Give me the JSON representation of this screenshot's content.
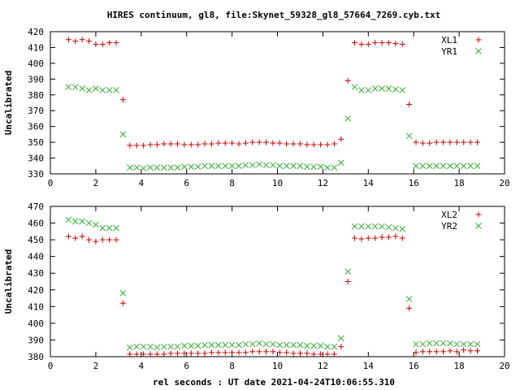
{
  "title": "HIRES continuum, gl8, file:Skynet_59328_gl8_57664_7269.cyb.txt",
  "xlabel": "rel seconds : UT date 2021-04-24T10:06:55.310",
  "colors": {
    "series_a": "#cc0000",
    "series_b": "#33aa33",
    "axis": "#000000"
  },
  "chart_data": [
    {
      "type": "scatter",
      "ylabel": "Uncalibrated",
      "xlim": [
        0,
        20
      ],
      "ylim": [
        330,
        420
      ],
      "xticks": [
        0,
        2,
        4,
        6,
        8,
        10,
        12,
        14,
        16,
        18,
        20
      ],
      "yticks": [
        330,
        340,
        350,
        360,
        370,
        380,
        390,
        400,
        410,
        420
      ],
      "legend_position": "top-right",
      "grid": false,
      "x": [
        0.8,
        1.1,
        1.4,
        1.7,
        2.0,
        2.3,
        2.6,
        2.9,
        3.2,
        3.5,
        3.8,
        4.1,
        4.4,
        4.7,
        5.0,
        5.3,
        5.6,
        5.9,
        6.2,
        6.5,
        6.8,
        7.1,
        7.4,
        7.7,
        8.0,
        8.3,
        8.6,
        8.9,
        9.2,
        9.5,
        9.8,
        10.1,
        10.4,
        10.7,
        11.0,
        11.3,
        11.6,
        11.9,
        12.2,
        12.5,
        12.8,
        13.1,
        13.4,
        13.7,
        14.0,
        14.3,
        14.6,
        14.9,
        15.2,
        15.5,
        15.8,
        16.1,
        16.4,
        16.7,
        17.0,
        17.3,
        17.6,
        17.9,
        18.2,
        18.5,
        18.8
      ],
      "series": [
        {
          "name": "XL1",
          "marker": "plus",
          "values": [
            415,
            414,
            415,
            414,
            412,
            412,
            413,
            413,
            377,
            348,
            348,
            348,
            348.5,
            348.5,
            349,
            349,
            349,
            348.5,
            348.5,
            348.5,
            349,
            349,
            349.5,
            349.5,
            349.5,
            349,
            349.5,
            350,
            350,
            350,
            349.5,
            349.5,
            349,
            349,
            349,
            348.5,
            348.5,
            348.5,
            348.5,
            349,
            352,
            389,
            413,
            412,
            412,
            413,
            413,
            413,
            412.5,
            412,
            374,
            350,
            349.5,
            349.5,
            350,
            350,
            350,
            350,
            350,
            350,
            350
          ]
        },
        {
          "name": "YR1",
          "marker": "cross",
          "values": [
            385,
            385,
            384,
            383,
            384,
            383,
            383,
            383,
            355,
            334,
            334,
            333.5,
            334,
            334,
            334,
            334,
            334,
            334.5,
            334.5,
            334.5,
            335,
            335,
            335,
            335,
            335,
            335,
            335.5,
            335.5,
            336,
            335.5,
            335.5,
            335,
            335,
            335,
            335,
            334.5,
            334.5,
            334.5,
            334,
            334,
            337,
            365,
            385,
            383,
            383,
            384,
            384,
            384,
            383.5,
            383,
            354,
            335,
            335,
            335,
            335,
            335,
            335,
            335,
            335,
            335,
            335
          ]
        }
      ]
    },
    {
      "type": "scatter",
      "ylabel": "Uncalibrated",
      "xlim": [
        0,
        20
      ],
      "ylim": [
        380,
        470
      ],
      "xticks": [
        0,
        2,
        4,
        6,
        8,
        10,
        12,
        14,
        16,
        18,
        20
      ],
      "yticks": [
        380,
        390,
        400,
        410,
        420,
        430,
        440,
        450,
        460,
        470
      ],
      "legend_position": "top-right",
      "grid": false,
      "x": [
        0.8,
        1.1,
        1.4,
        1.7,
        2.0,
        2.3,
        2.6,
        2.9,
        3.2,
        3.5,
        3.8,
        4.1,
        4.4,
        4.7,
        5.0,
        5.3,
        5.6,
        5.9,
        6.2,
        6.5,
        6.8,
        7.1,
        7.4,
        7.7,
        8.0,
        8.3,
        8.6,
        8.9,
        9.2,
        9.5,
        9.8,
        10.1,
        10.4,
        10.7,
        11.0,
        11.3,
        11.6,
        11.9,
        12.2,
        12.5,
        12.8,
        13.1,
        13.4,
        13.7,
        14.0,
        14.3,
        14.6,
        14.9,
        15.2,
        15.5,
        15.8,
        16.1,
        16.4,
        16.7,
        17.0,
        17.3,
        17.6,
        17.9,
        18.2,
        18.5,
        18.8
      ],
      "series": [
        {
          "name": "XL2",
          "marker": "plus",
          "values": [
            452,
            451,
            452,
            450,
            449,
            450,
            450,
            450,
            412,
            381.5,
            381.5,
            381.5,
            381.5,
            381.5,
            381.5,
            382,
            382,
            382,
            382,
            382,
            382,
            382.5,
            382.5,
            382.5,
            382.5,
            382.5,
            382.5,
            383,
            383,
            383,
            383,
            382.5,
            382.5,
            382,
            382,
            382,
            381.5,
            381.5,
            381.5,
            381.5,
            386,
            425,
            451,
            450.5,
            451,
            451,
            451.5,
            451.5,
            452,
            451,
            409,
            382.5,
            383,
            383,
            383,
            383,
            383.5,
            383,
            384,
            383.5,
            383.5
          ]
        },
        {
          "name": "YR2",
          "marker": "cross",
          "values": [
            462,
            461,
            461,
            460,
            459,
            457,
            457,
            457,
            418,
            385.5,
            386,
            386,
            386,
            385.5,
            386,
            386,
            386,
            386.5,
            386.5,
            386.5,
            387,
            387,
            387,
            387,
            387,
            387,
            387.5,
            387.5,
            388,
            387.5,
            387.5,
            387,
            387,
            387,
            387,
            386.5,
            386.5,
            386.5,
            386,
            386,
            391,
            431,
            458,
            458,
            458,
            458,
            458,
            457.5,
            457,
            456.5,
            414.5,
            387.5,
            387.5,
            388,
            388,
            388,
            388,
            387.5,
            387.5,
            387.5,
            387.5
          ]
        }
      ]
    }
  ]
}
